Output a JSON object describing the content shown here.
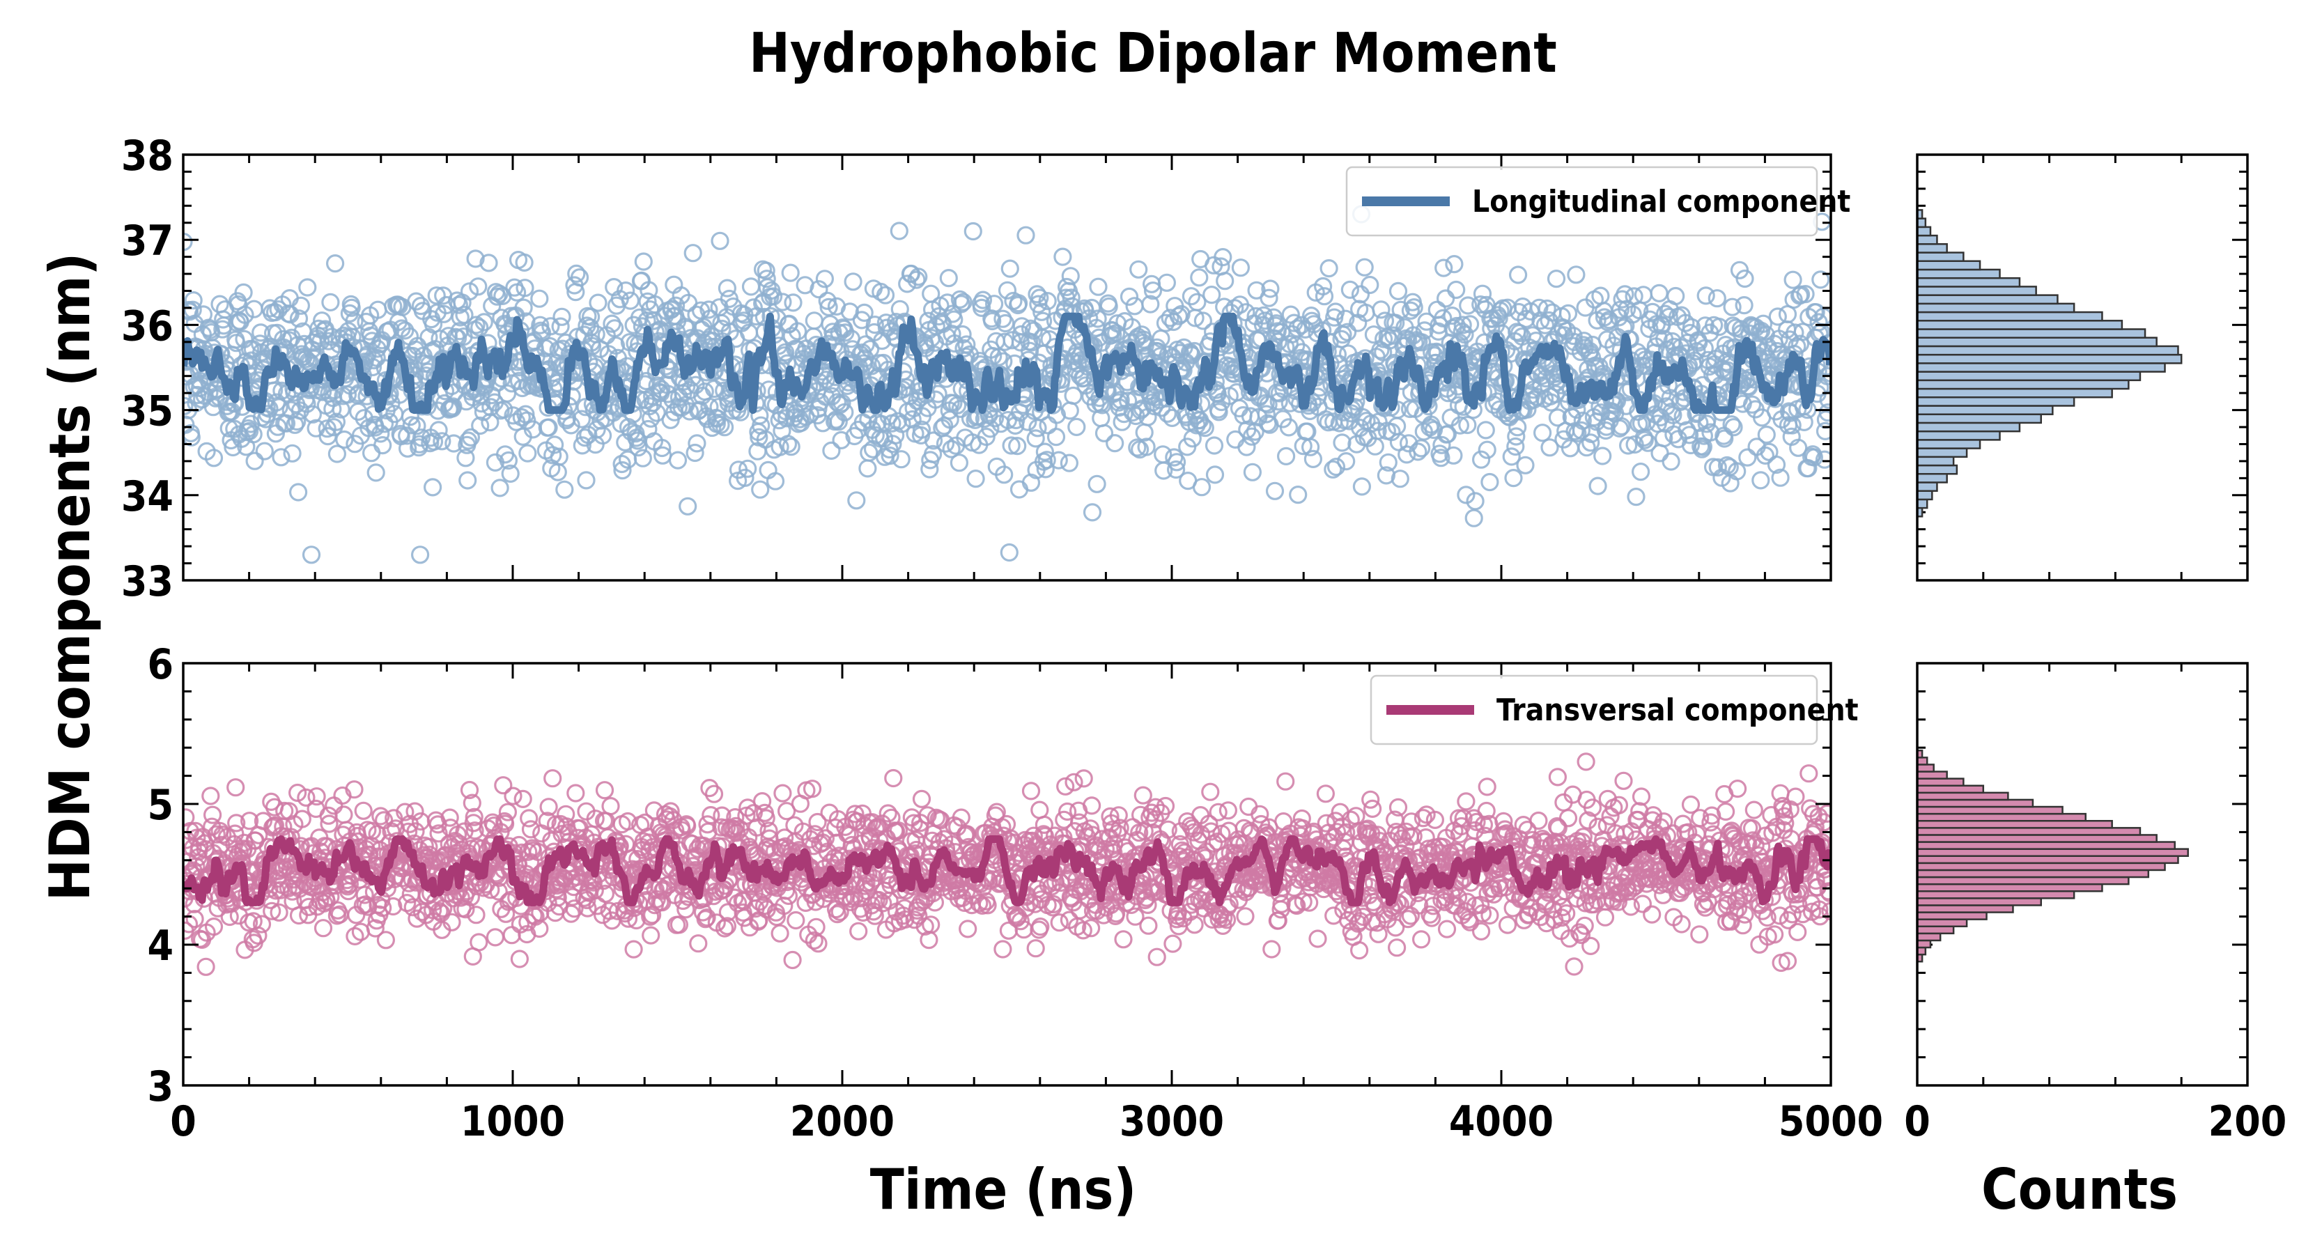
{
  "chart_data": {
    "type": "scatter",
    "title": "Hydrophobic Dipolar Moment",
    "xlabel": "Time (ns)",
    "ylabel": "HDM components (nm)",
    "hist_xlabel": "Counts",
    "xlim": [
      0,
      5000
    ],
    "xticks": [
      "0",
      "1000",
      "2000",
      "3000",
      "4000",
      "5000"
    ],
    "hist_xlim": [
      0,
      200
    ],
    "hist_xticks": [
      "0",
      "200"
    ],
    "panels": [
      {
        "series_name": "Longitudinal component",
        "color": "#4a78a8",
        "marker_color": "#8fb0d0",
        "hist_fill": "#a9c3de",
        "ylim": [
          33,
          38
        ],
        "yticks": [
          "33",
          "34",
          "35",
          "36",
          "37",
          "38"
        ],
        "legend_position": "top-right",
        "scatter": {
          "n_points": 2500,
          "mean": 35.45,
          "sd": 0.55,
          "min": 33.3,
          "max": 37.3
        },
        "smoothed_range": [
          35.0,
          36.1
        ],
        "histogram": {
          "bin_start": 33.75,
          "bin_width": 0.1,
          "counts": [
            3,
            6,
            9,
            12,
            18,
            24,
            22,
            30,
            38,
            50,
            62,
            75,
            82,
            95,
            118,
            128,
            135,
            150,
            160,
            158,
            145,
            138,
            124,
            112,
            95,
            85,
            72,
            62,
            50,
            38,
            28,
            18,
            12,
            8,
            5,
            3
          ]
        }
      },
      {
        "series_name": "Transversal component",
        "color": "#a93a75",
        "marker_color": "#cf7aa5",
        "hist_fill": "#d48aae",
        "ylim": [
          3,
          6
        ],
        "yticks": [
          "3",
          "4",
          "5",
          "6"
        ],
        "legend_position": "top-right",
        "scatter": {
          "n_points": 2500,
          "mean": 4.55,
          "sd": 0.22,
          "min": 3.75,
          "max": 5.3
        },
        "smoothed_range": [
          4.3,
          4.75
        ],
        "histogram": {
          "bin_start": 3.88,
          "bin_width": 0.05,
          "counts": [
            3,
            5,
            8,
            14,
            22,
            30,
            42,
            58,
            75,
            95,
            112,
            128,
            140,
            150,
            158,
            164,
            156,
            145,
            135,
            118,
            102,
            88,
            70,
            55,
            40,
            28,
            18,
            10,
            6,
            3
          ]
        }
      }
    ]
  }
}
